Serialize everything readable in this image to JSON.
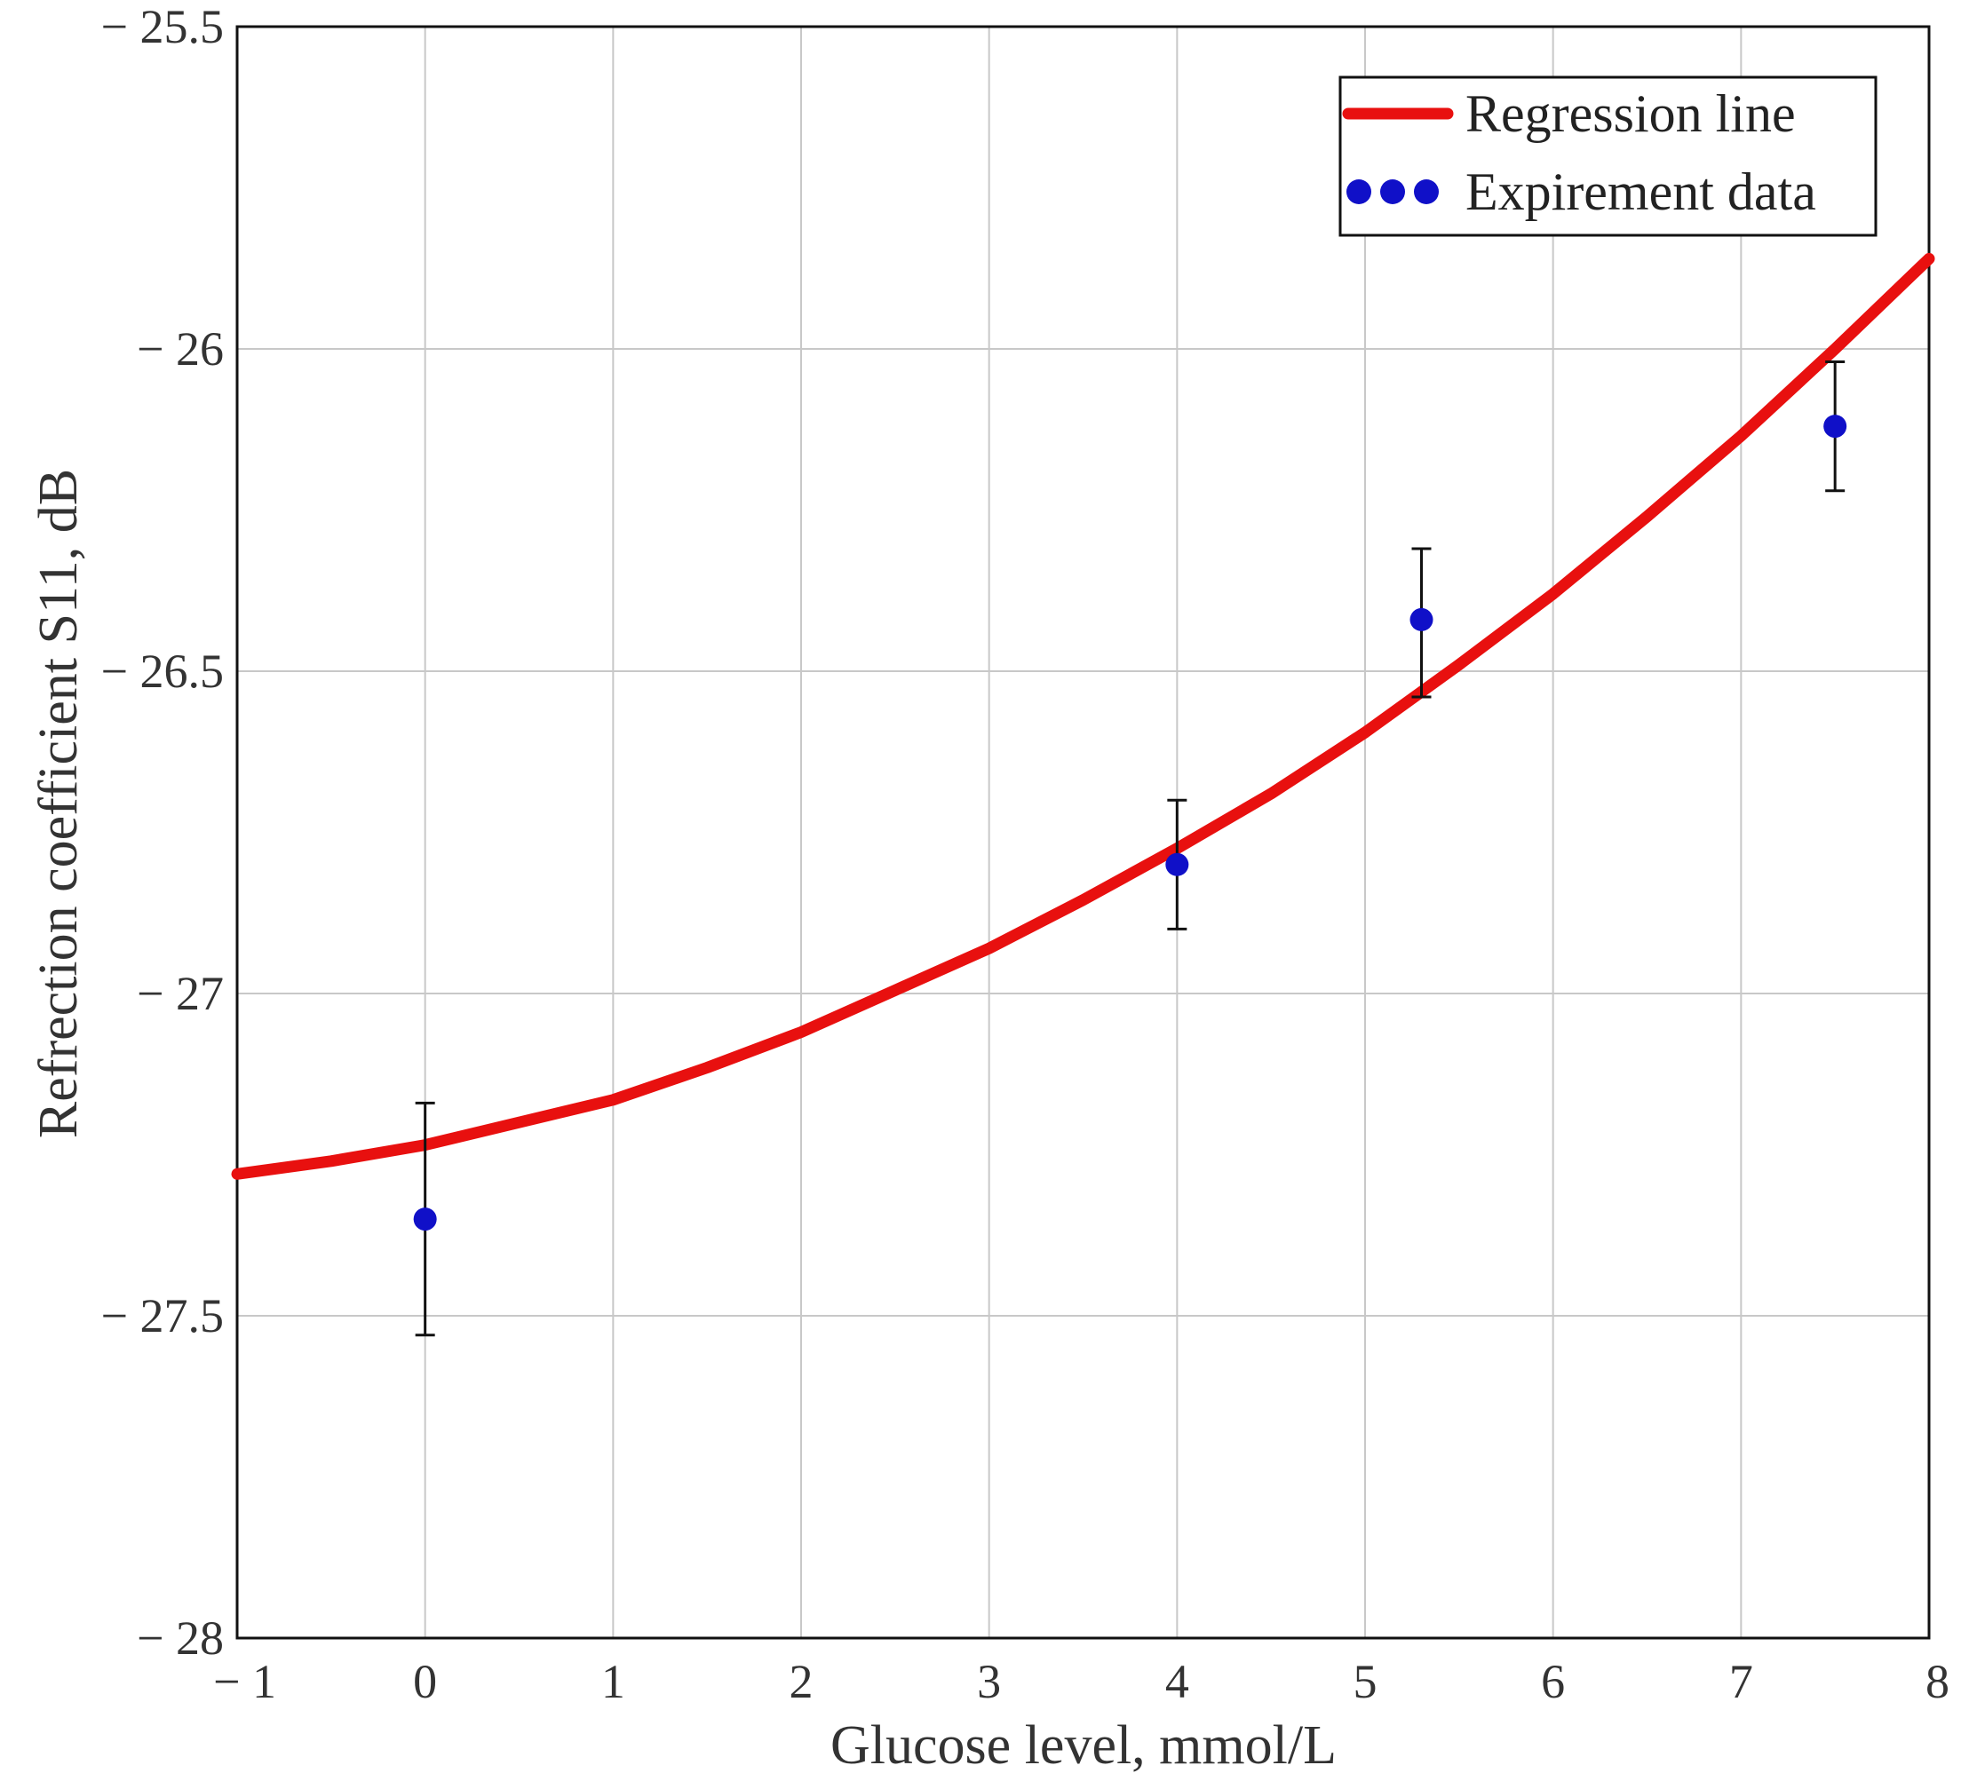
{
  "chart_data": {
    "type": "scatter",
    "title": "",
    "xlabel": "Glucose level, mmol/L",
    "ylabel": "Refrection coefficient S11, dB",
    "xlim": [
      -1,
      8
    ],
    "ylim": [
      -28,
      -25.5
    ],
    "x_ticks": [
      -1,
      0,
      1,
      2,
      3,
      4,
      5,
      6,
      7,
      8
    ],
    "x_tick_labels": [
      "− 1",
      "0",
      "1",
      "2",
      "3",
      "4",
      "5",
      "6",
      "7",
      "8"
    ],
    "y_ticks": [
      -28,
      -27.5,
      -27,
      -26.5,
      -26,
      -25.5
    ],
    "y_tick_labels": [
      "− 28",
      "− 27.5",
      "− 27",
      "− 26.5",
      "− 26",
      "− 25.5"
    ],
    "grid": true,
    "legend_position": "top-right",
    "series": [
      {
        "name": "Regression line",
        "kind": "line",
        "color": "#e8100f",
        "x": [
          -1,
          -0.5,
          0,
          0.5,
          1,
          1.5,
          2,
          2.5,
          3,
          3.5,
          4,
          4.5,
          5,
          5.5,
          6,
          6.5,
          7,
          7.5,
          8
        ],
        "y": [
          -27.28,
          -27.26,
          -27.235,
          -27.2,
          -27.165,
          -27.115,
          -27.06,
          -26.995,
          -26.93,
          -26.855,
          -26.775,
          -26.69,
          -26.595,
          -26.49,
          -26.38,
          -26.26,
          -26.135,
          -26.0,
          -25.86
        ]
      },
      {
        "name": "Expirement data",
        "kind": "scatter",
        "color": "#1010c8",
        "x": [
          0,
          4,
          5.3,
          7.5
        ],
        "y": [
          -27.35,
          -26.8,
          -26.42,
          -26.12
        ],
        "error_low": [
          -27.53,
          -26.9,
          -26.54,
          -26.22
        ],
        "error_high": [
          -27.17,
          -26.7,
          -26.31,
          -26.02
        ]
      }
    ]
  }
}
